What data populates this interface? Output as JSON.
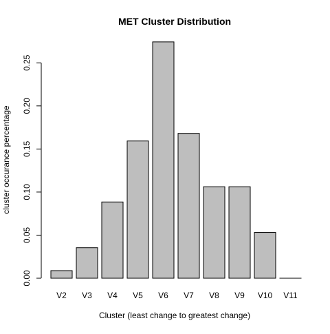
{
  "chart_data": {
    "type": "bar",
    "title": "MET Cluster Distribution",
    "xlabel": "Cluster (least change to greatest change)",
    "ylabel": "cluster occurance percentage",
    "categories": [
      "V2",
      "V3",
      "V4",
      "V5",
      "V6",
      "V7",
      "V8",
      "V9",
      "V10",
      "V11"
    ],
    "values": [
      0.0088,
      0.0354,
      0.0885,
      0.1593,
      0.2743,
      0.1681,
      0.1062,
      0.1062,
      0.0531,
      0.0
    ],
    "ylim": [
      0,
      0.27
    ],
    "yticks": [
      0.0,
      0.05,
      0.1,
      0.15,
      0.2,
      0.25
    ],
    "ytick_labels": [
      "0.00",
      "0.05",
      "0.10",
      "0.15",
      "0.20",
      "0.25"
    ],
    "grid": false,
    "legend": "none",
    "colors": {
      "bar_fill": "#bebebe",
      "bar_stroke": "#000000",
      "axis": "#000000",
      "text": "#000000"
    }
  }
}
